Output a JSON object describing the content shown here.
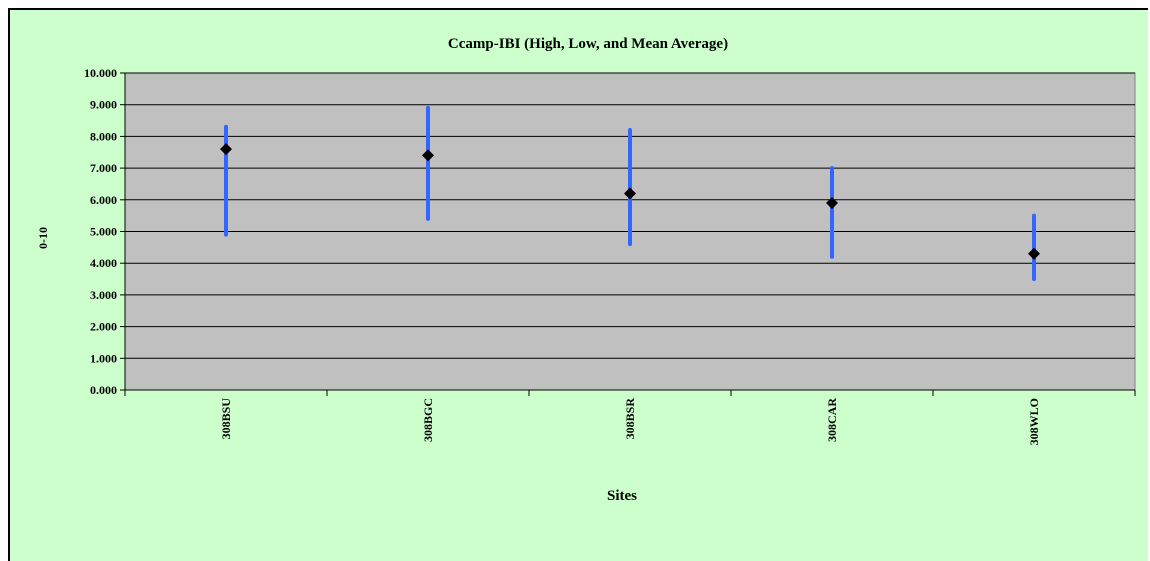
{
  "chart_data": {
    "type": "scatter",
    "title": "Ccamp-IBI (High, Low, and Mean Average)",
    "xlabel": "Sites",
    "ylabel": "0-10",
    "ylim": [
      0,
      10
    ],
    "y_ticks": [
      "0.000",
      "1.000",
      "2.000",
      "3.000",
      "4.000",
      "5.000",
      "6.000",
      "7.000",
      "8.000",
      "9.000",
      "10.000"
    ],
    "grid": true,
    "categories": [
      "308BSU",
      "308BGC",
      "308BSR",
      "308CAR",
      "308WLO"
    ],
    "series": [
      {
        "values": [
          8.3,
          8.9,
          8.2,
          7.0,
          5.5
        ]
      },
      {
        "values": [
          4.9,
          5.4,
          4.6,
          4.2,
          3.5
        ]
      },
      {
        "values": [
          7.6,
          7.4,
          6.2,
          5.9,
          4.3
        ]
      }
    ],
    "colors": {
      "background": "#ccffcc",
      "plot_area": "#c0c0c0",
      "range_bar": "#3366ff",
      "mean_marker": "#000000",
      "gridline": "#000000"
    }
  }
}
